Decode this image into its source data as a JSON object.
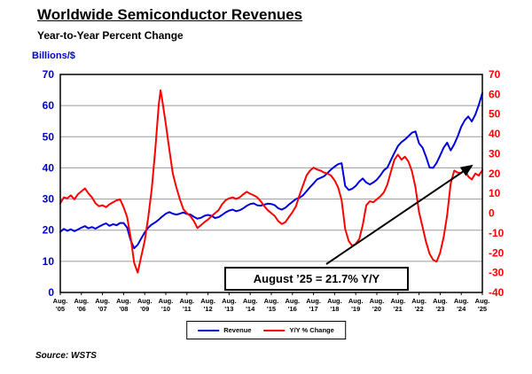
{
  "chart_data": {
    "type": "line",
    "title": "Worldwide Semiconductor Revenues",
    "subtitle": "Year-to-Year Percent Change",
    "source": "Source: WSTS",
    "grid": "horizontal",
    "legend_position": "bottom-center",
    "left_axis": {
      "label": "Billions/$",
      "min": 0,
      "max": 70,
      "tick_step": 10,
      "color": "#0000CC"
    },
    "right_axis": {
      "min": -40,
      "max": 70,
      "tick_step": 10,
      "color": "#FF0000"
    },
    "x_tick_labels": [
      "Aug. '05",
      "Aug. '06",
      "Aug. '07",
      "Aug. '08",
      "Aug. '09",
      "Aug. '10",
      "Aug. '11",
      "Aug. '12",
      "Aug. '13",
      "Aug. '14",
      "Aug. '15",
      "Aug. '16",
      "Aug. '17",
      "Aug. '18",
      "Aug. '19",
      "Aug. '20",
      "Aug. '21",
      "Aug. '22",
      "Aug. '23",
      "Aug. '24",
      "Aug. '25"
    ],
    "x_unit": "months_since_aug_2005",
    "annotation": {
      "text": "August ’25 = 21.7% Y/Y"
    },
    "series": [
      {
        "name": "Revenue",
        "axis": "left",
        "color": "#0000E0",
        "points": [
          [
            0,
            19.5
          ],
          [
            2,
            20.4
          ],
          [
            4,
            19.8
          ],
          [
            6,
            20.3
          ],
          [
            8,
            19.7
          ],
          [
            10,
            20.2
          ],
          [
            12,
            20.8
          ],
          [
            14,
            21.3
          ],
          [
            16,
            20.6
          ],
          [
            18,
            21.0
          ],
          [
            20,
            20.5
          ],
          [
            22,
            21.1
          ],
          [
            24,
            21.7
          ],
          [
            26,
            22.2
          ],
          [
            28,
            21.4
          ],
          [
            30,
            21.9
          ],
          [
            32,
            21.6
          ],
          [
            34,
            22.3
          ],
          [
            36,
            22.3
          ],
          [
            38,
            20.8
          ],
          [
            40,
            16.8
          ],
          [
            42,
            14.2
          ],
          [
            44,
            15.3
          ],
          [
            46,
            17.3
          ],
          [
            48,
            19.3
          ],
          [
            50,
            20.8
          ],
          [
            52,
            21.8
          ],
          [
            54,
            22.5
          ],
          [
            56,
            23.4
          ],
          [
            58,
            24.4
          ],
          [
            60,
            25.3
          ],
          [
            62,
            25.8
          ],
          [
            64,
            25.3
          ],
          [
            66,
            25.0
          ],
          [
            68,
            25.3
          ],
          [
            70,
            25.7
          ],
          [
            72,
            25.2
          ],
          [
            74,
            25.0
          ],
          [
            76,
            24.3
          ],
          [
            78,
            23.7
          ],
          [
            80,
            24.0
          ],
          [
            82,
            24.6
          ],
          [
            84,
            24.9
          ],
          [
            86,
            24.6
          ],
          [
            88,
            23.9
          ],
          [
            90,
            24.2
          ],
          [
            92,
            24.9
          ],
          [
            94,
            25.7
          ],
          [
            96,
            26.3
          ],
          [
            98,
            26.6
          ],
          [
            100,
            26.1
          ],
          [
            102,
            26.4
          ],
          [
            104,
            27.0
          ],
          [
            106,
            27.8
          ],
          [
            108,
            28.4
          ],
          [
            110,
            28.6
          ],
          [
            112,
            28.0
          ],
          [
            114,
            27.9
          ],
          [
            116,
            28.2
          ],
          [
            118,
            28.5
          ],
          [
            120,
            28.4
          ],
          [
            122,
            28.0
          ],
          [
            124,
            27.0
          ],
          [
            126,
            26.6
          ],
          [
            128,
            27.2
          ],
          [
            130,
            28.2
          ],
          [
            132,
            29.1
          ],
          [
            134,
            30.0
          ],
          [
            136,
            30.4
          ],
          [
            138,
            31.2
          ],
          [
            140,
            32.5
          ],
          [
            142,
            33.8
          ],
          [
            144,
            35.0
          ],
          [
            146,
            36.3
          ],
          [
            148,
            36.8
          ],
          [
            150,
            37.3
          ],
          [
            152,
            38.4
          ],
          [
            154,
            39.5
          ],
          [
            156,
            40.4
          ],
          [
            158,
            41.2
          ],
          [
            160,
            41.5
          ],
          [
            162,
            34.2
          ],
          [
            164,
            32.9
          ],
          [
            166,
            33.3
          ],
          [
            168,
            34.2
          ],
          [
            170,
            35.6
          ],
          [
            172,
            36.6
          ],
          [
            174,
            35.3
          ],
          [
            176,
            34.7
          ],
          [
            178,
            35.3
          ],
          [
            180,
            36.2
          ],
          [
            182,
            37.6
          ],
          [
            184,
            39.2
          ],
          [
            186,
            40.1
          ],
          [
            188,
            42.5
          ],
          [
            190,
            44.8
          ],
          [
            192,
            47.0
          ],
          [
            194,
            48.3
          ],
          [
            196,
            49.1
          ],
          [
            198,
            50.2
          ],
          [
            200,
            51.3
          ],
          [
            202,
            51.7
          ],
          [
            204,
            47.9
          ],
          [
            206,
            46.5
          ],
          [
            208,
            43.6
          ],
          [
            210,
            40.1
          ],
          [
            212,
            40.0
          ],
          [
            214,
            41.6
          ],
          [
            216,
            44.0
          ],
          [
            218,
            46.5
          ],
          [
            220,
            48.1
          ],
          [
            222,
            45.6
          ],
          [
            224,
            47.6
          ],
          [
            226,
            50.1
          ],
          [
            228,
            53.2
          ],
          [
            230,
            55.3
          ],
          [
            232,
            56.5
          ],
          [
            234,
            54.9
          ],
          [
            236,
            57.1
          ],
          [
            238,
            60.2
          ],
          [
            240,
            64.0
          ]
        ]
      },
      {
        "name": "Y/Y % Change",
        "axis": "right",
        "color": "#FF0000",
        "points": [
          [
            0,
            5
          ],
          [
            2,
            8
          ],
          [
            4,
            7.5
          ],
          [
            6,
            9
          ],
          [
            8,
            7
          ],
          [
            10,
            9.5
          ],
          [
            12,
            11
          ],
          [
            14,
            12.5
          ],
          [
            16,
            10
          ],
          [
            18,
            8
          ],
          [
            20,
            5
          ],
          [
            22,
            3.5
          ],
          [
            24,
            4
          ],
          [
            26,
            3
          ],
          [
            28,
            4.5
          ],
          [
            30,
            5.5
          ],
          [
            32,
            6.5
          ],
          [
            34,
            7
          ],
          [
            36,
            3
          ],
          [
            38,
            -2
          ],
          [
            40,
            -12
          ],
          [
            42,
            -25
          ],
          [
            44,
            -30
          ],
          [
            46,
            -22
          ],
          [
            48,
            -14
          ],
          [
            50,
            -2
          ],
          [
            52,
            12
          ],
          [
            54,
            32
          ],
          [
            56,
            55
          ],
          [
            57,
            62
          ],
          [
            58,
            57
          ],
          [
            60,
            45
          ],
          [
            62,
            32
          ],
          [
            64,
            20
          ],
          [
            66,
            13
          ],
          [
            68,
            7
          ],
          [
            70,
            2
          ],
          [
            72,
            0
          ],
          [
            74,
            -1.5
          ],
          [
            76,
            -4
          ],
          [
            78,
            -7.5
          ],
          [
            80,
            -6
          ],
          [
            82,
            -4.5
          ],
          [
            84,
            -3.2
          ],
          [
            86,
            -1.5
          ],
          [
            88,
            0
          ],
          [
            90,
            1.5
          ],
          [
            92,
            4.5
          ],
          [
            94,
            6.5
          ],
          [
            96,
            7.5
          ],
          [
            98,
            8
          ],
          [
            100,
            7.2
          ],
          [
            102,
            8
          ],
          [
            104,
            9.5
          ],
          [
            106,
            10.8
          ],
          [
            108,
            9.8
          ],
          [
            110,
            9
          ],
          [
            112,
            8
          ],
          [
            114,
            6
          ],
          [
            116,
            3.5
          ],
          [
            118,
            1.5
          ],
          [
            120,
            0
          ],
          [
            122,
            -1.5
          ],
          [
            124,
            -4
          ],
          [
            126,
            -5.5
          ],
          [
            128,
            -4.5
          ],
          [
            130,
            -2
          ],
          [
            132,
            0.5
          ],
          [
            134,
            3.5
          ],
          [
            136,
            9
          ],
          [
            138,
            14
          ],
          [
            140,
            19
          ],
          [
            142,
            21.5
          ],
          [
            144,
            23
          ],
          [
            146,
            22
          ],
          [
            148,
            21.5
          ],
          [
            150,
            20.5
          ],
          [
            152,
            20
          ],
          [
            154,
            19
          ],
          [
            156,
            16.5
          ],
          [
            158,
            13
          ],
          [
            160,
            6.5
          ],
          [
            162,
            -8
          ],
          [
            164,
            -14
          ],
          [
            166,
            -16.5
          ],
          [
            168,
            -15.5
          ],
          [
            170,
            -13
          ],
          [
            172,
            -6
          ],
          [
            174,
            4
          ],
          [
            176,
            6
          ],
          [
            178,
            5.5
          ],
          [
            180,
            7
          ],
          [
            182,
            8.5
          ],
          [
            184,
            10.5
          ],
          [
            186,
            14.5
          ],
          [
            188,
            21
          ],
          [
            190,
            27
          ],
          [
            192,
            29.5
          ],
          [
            194,
            27
          ],
          [
            196,
            28.5
          ],
          [
            198,
            26
          ],
          [
            200,
            21
          ],
          [
            202,
            13
          ],
          [
            204,
            0.5
          ],
          [
            206,
            -7
          ],
          [
            208,
            -14.5
          ],
          [
            210,
            -20.5
          ],
          [
            212,
            -23.5
          ],
          [
            214,
            -24.5
          ],
          [
            216,
            -20
          ],
          [
            218,
            -12
          ],
          [
            220,
            -1
          ],
          [
            222,
            15
          ],
          [
            224,
            21.5
          ],
          [
            226,
            20.5
          ],
          [
            228,
            20.3
          ],
          [
            230,
            22
          ],
          [
            232,
            18.5
          ],
          [
            234,
            17
          ],
          [
            236,
            20
          ],
          [
            238,
            19
          ],
          [
            240,
            21.7
          ]
        ]
      }
    ]
  }
}
